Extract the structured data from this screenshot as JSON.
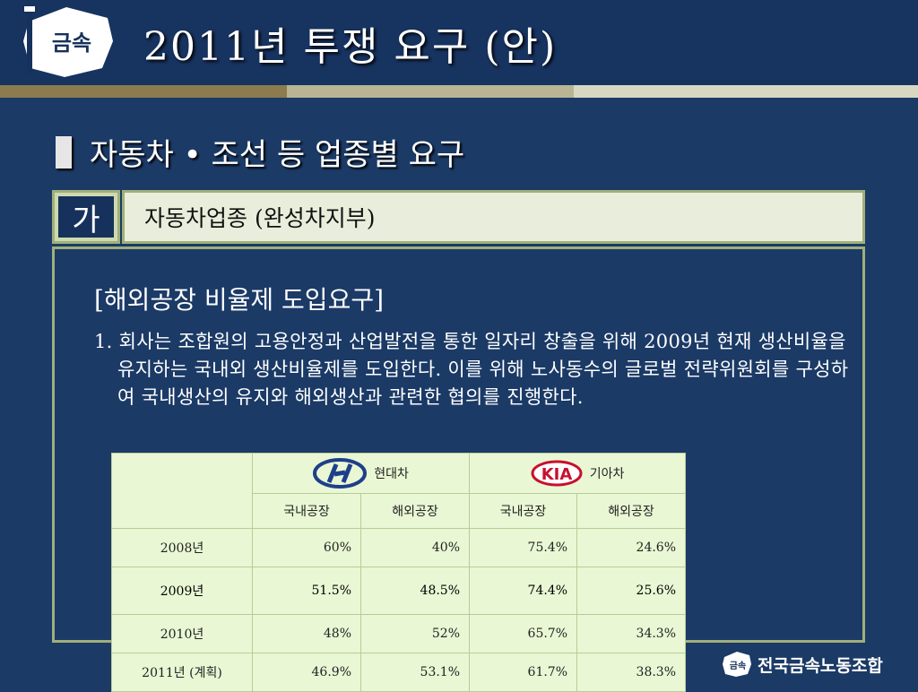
{
  "header": {
    "logo_text": "금속",
    "title": "2011년 투쟁 요구 (안)"
  },
  "section": {
    "heading": "자동차 • 조선 등 업종별 요구",
    "tag": "가",
    "subheading": "자동차업종 (완성차지부)"
  },
  "requirement": {
    "title": "[해외공장 비율제 도입요구]",
    "body": "1. 회사는 조합원의 고용안정과 산업발전을 통한 일자리 창출을 위해 2009년 현재 생산비율을 유지하는 국내외 생산비율제를 도입한다. 이를 위해 노사동수의 글로벌 전략위원회를 구성하여 국내생산의 유지와 해외생산과 관련한 협의를 진행한다."
  },
  "table": {
    "brands": [
      {
        "name": "현대차",
        "logo_icon": "hyundai-logo-icon"
      },
      {
        "name": "기아차",
        "logo_icon": "kia-logo-icon",
        "logo_text": "KIA"
      }
    ],
    "subheaders": [
      "국내공장",
      "해외공장",
      "국내공장",
      "해외공장"
    ],
    "rows": [
      {
        "year": "2008년",
        "values": [
          "60%",
          "40%",
          "75.4%",
          "24.6%"
        ]
      },
      {
        "year": "2009년",
        "values": [
          "51.5%",
          "48.5%",
          "74.4%",
          "25.6%"
        ]
      },
      {
        "year": "2010년",
        "values": [
          "48%",
          "52%",
          "65.7%",
          "34.3%"
        ]
      },
      {
        "year": "2011년 (계획)",
        "values": [
          "46.9%",
          "53.1%",
          "61.7%",
          "38.3%"
        ]
      }
    ],
    "highlight_color": "#94d159"
  },
  "footer": {
    "org_logo_text": "금속",
    "org_name": "전국금속노동조합"
  }
}
